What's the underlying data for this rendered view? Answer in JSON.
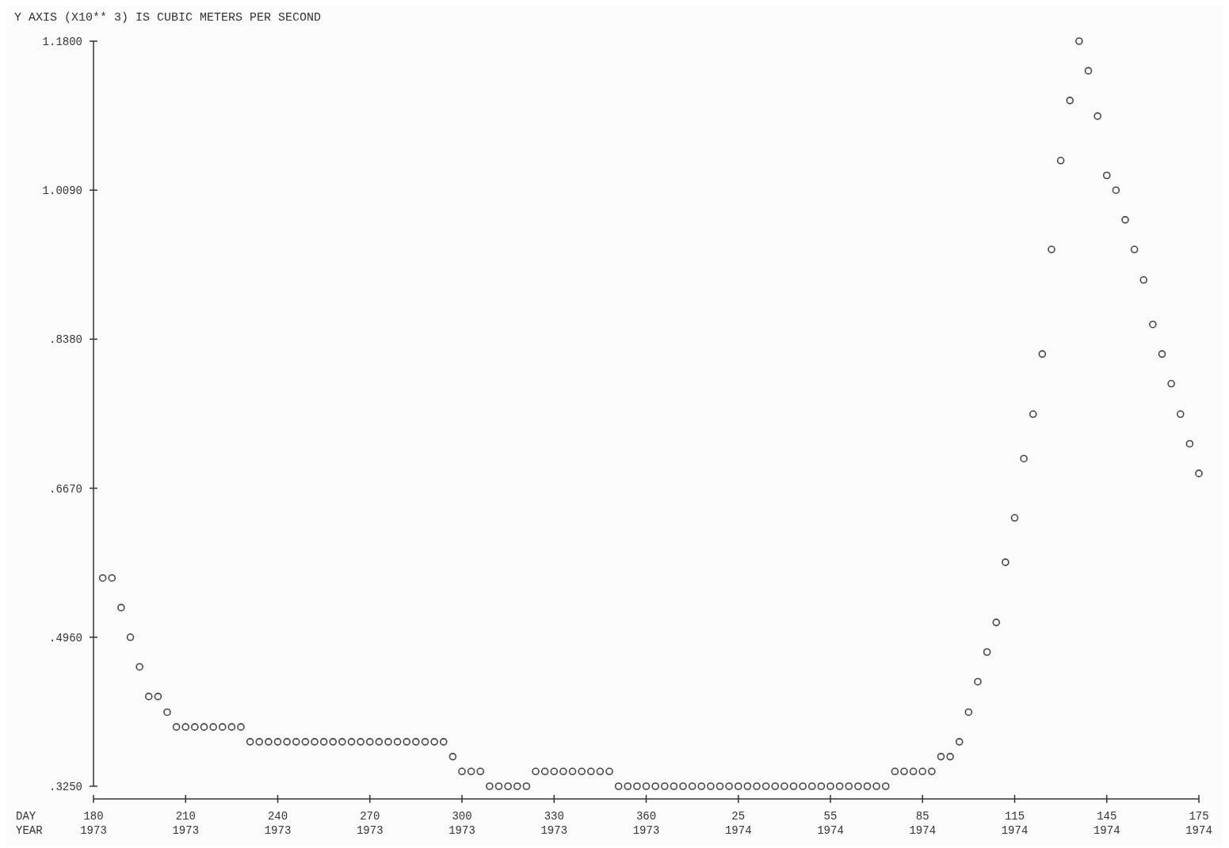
{
  "chart_data": {
    "type": "scatter",
    "title": "Y AXIS (X10**  3) IS CUBIC METERS PER SECOND",
    "xlabel": "DAY YEAR",
    "marker": "circle",
    "grid": false,
    "categories": [
      "180 1973",
      null,
      null,
      null,
      null,
      null,
      null,
      null,
      null,
      null,
      "210 1973",
      null,
      null,
      null,
      null,
      null,
      null,
      null,
      null,
      null,
      "240 1973",
      null,
      null,
      null,
      null,
      null,
      null,
      null,
      null,
      null,
      "270 1973",
      null,
      null,
      null,
      null,
      null,
      null,
      null,
      null,
      null,
      "300 1973",
      null,
      null,
      null,
      null,
      null,
      null,
      null,
      null,
      null,
      "330 1973",
      null,
      null,
      null,
      null,
      null,
      null,
      null,
      null,
      null,
      "360 1973",
      null,
      null,
      null,
      null,
      null,
      null,
      null,
      null,
      null,
      "25 1974",
      null,
      null,
      null,
      null,
      null,
      null,
      null,
      null,
      null,
      "55 1974",
      null,
      null,
      null,
      null,
      null,
      null,
      null,
      null,
      null,
      "85 1974",
      null,
      null,
      null,
      null,
      null,
      null,
      null,
      null,
      null,
      "115 1974",
      null,
      null,
      null,
      null,
      null,
      null,
      null,
      null,
      null,
      "145 1974",
      null,
      null,
      null,
      null,
      null,
      null,
      null,
      null,
      null,
      "175 1974"
    ],
    "ylim": [
      0.325,
      1.18
    ],
    "yticks": [
      {
        "value": 0.325,
        "label": ".3250"
      },
      {
        "value": 0.496,
        "label": ".4960"
      },
      {
        "value": 0.667,
        "label": ".6670"
      },
      {
        "value": 0.838,
        "label": ".8380"
      },
      {
        "value": 1.009,
        "label": "1.0090"
      },
      {
        "value": 1.18,
        "label": "1.1800"
      }
    ],
    "series": [
      {
        "color": "#444444",
        "values": [
          null,
          0.564,
          0.564,
          0.53,
          0.496,
          0.462,
          0.428,
          0.428,
          0.41,
          0.393,
          0.393,
          0.393,
          0.393,
          0.393,
          0.393,
          0.393,
          0.393,
          0.376,
          0.376,
          0.376,
          0.376,
          0.376,
          0.376,
          0.376,
          0.376,
          0.376,
          0.376,
          0.376,
          0.376,
          0.376,
          0.376,
          0.376,
          0.376,
          0.376,
          0.376,
          0.376,
          0.376,
          0.376,
          0.376,
          0.359,
          0.342,
          0.342,
          0.342,
          0.325,
          0.325,
          0.325,
          0.325,
          0.325,
          0.342,
          0.342,
          0.342,
          0.342,
          0.342,
          0.342,
          0.342,
          0.342,
          0.342,
          0.325,
          0.325,
          0.325,
          0.325,
          0.325,
          0.325,
          0.325,
          0.325,
          0.325,
          0.325,
          0.325,
          0.325,
          0.325,
          0.325,
          0.325,
          0.325,
          0.325,
          0.325,
          0.325,
          0.325,
          0.325,
          0.325,
          0.325,
          0.325,
          0.325,
          0.325,
          0.325,
          0.325,
          0.325,
          0.325,
          0.342,
          0.342,
          0.342,
          0.342,
          0.342,
          0.359,
          0.359,
          0.376,
          0.41,
          0.445,
          0.479,
          0.513,
          0.582,
          0.633,
          0.701,
          0.752,
          0.821,
          0.941,
          1.043,
          1.112,
          1.18,
          1.146,
          1.094,
          1.026,
          1.009,
          0.975,
          0.941,
          0.906,
          0.855,
          0.821,
          0.787,
          0.752,
          0.718,
          0.684
        ]
      }
    ]
  }
}
